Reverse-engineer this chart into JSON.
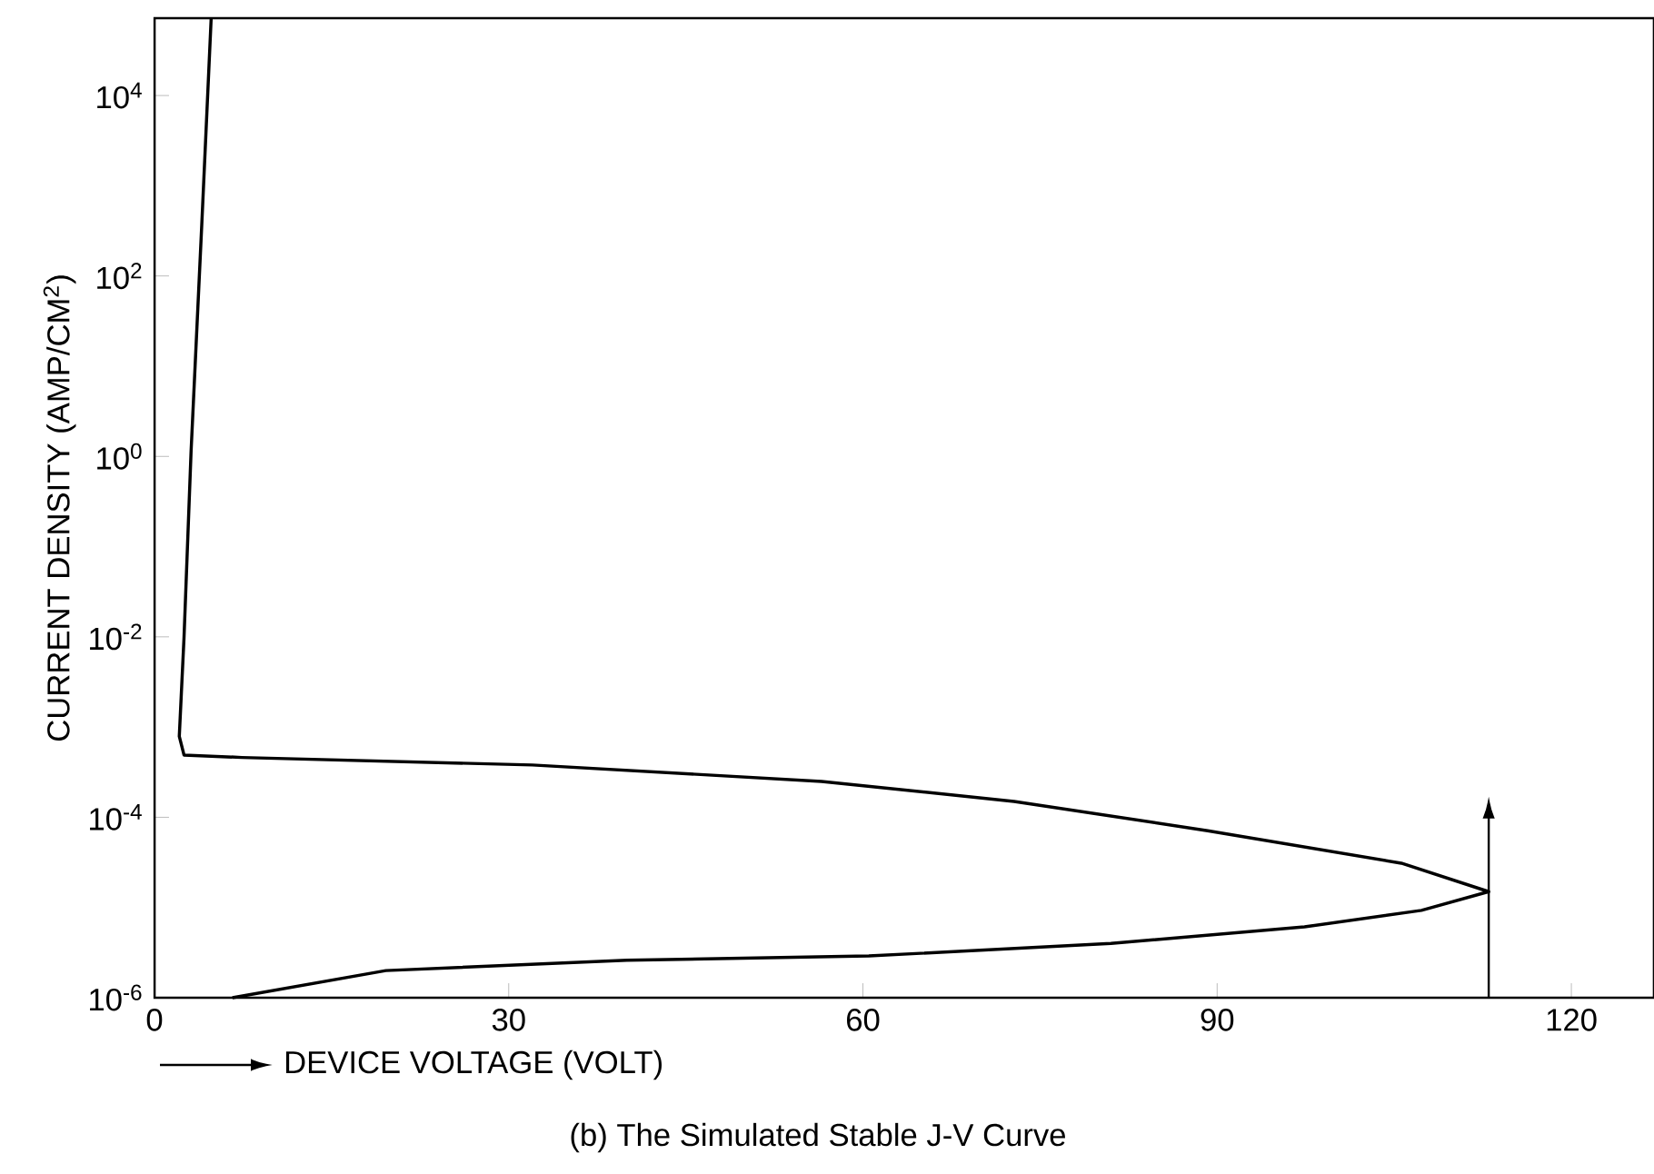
{
  "chart_data": {
    "type": "line",
    "title": "(b) The Simulated Stable J-V Curve",
    "xlabel": "DEVICE VOLTAGE (VOLT)",
    "ylabel": "CURRENT DENSITY (AMP/CM$^{2}$)",
    "log": "y",
    "marker": "none",
    "line_style": "solid",
    "xlim": [
      0,
      127
    ],
    "ylim": [
      1e-06,
      72000
    ],
    "xticks": [
      0,
      30,
      60,
      90,
      120
    ],
    "yticks": [
      {
        "value": 1e-06,
        "label": "10$^{-6}$"
      },
      {
        "value": 0.0001,
        "label": "10$^{-4}$"
      },
      {
        "value": 0.01,
        "label": "10$^{-2}$"
      },
      {
        "value": 1,
        "label": "10$^{0}$"
      },
      {
        "value": 100,
        "label": "10$^{2}$"
      },
      {
        "value": 10000,
        "label": "10$^{4}$"
      }
    ],
    "series": [
      {
        "color": "#000000",
        "x": [
          6.6,
          19.6,
          40,
          60.5,
          81,
          97.4,
          107.3,
          113,
          105.6,
          89.2,
          72.8,
          56.5,
          32,
          7.4,
          2.5,
          2.1,
          2.5,
          3.1,
          4.0,
          4.8
        ],
        "values": [
          1e-06,
          2e-06,
          2.6e-06,
          2.9e-06,
          4e-06,
          6.1e-06,
          9.3e-06,
          1.5e-05,
          3.1e-05,
          7.1e-05,
          0.00015,
          0.00025,
          0.00038,
          0.00046,
          0.00049,
          0.00079,
          0.0098,
          1.15,
          360,
          72000
        ]
      }
    ]
  }
}
